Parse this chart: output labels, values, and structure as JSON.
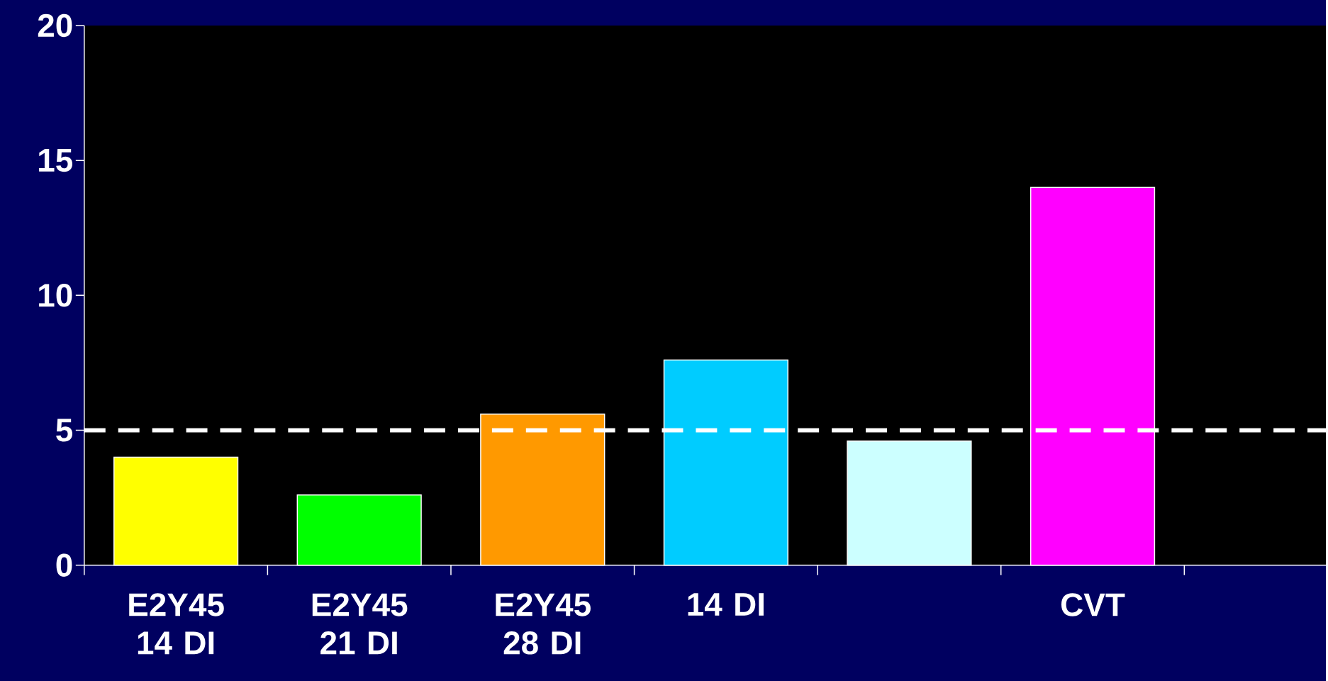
{
  "chart_data": {
    "type": "bar",
    "categories": [
      "E2Y45 14 DI",
      "E2Y45 21 DI",
      "E2Y45 28 DI",
      "14 DI",
      null,
      "CVT"
    ],
    "values": [
      4.0,
      2.6,
      5.6,
      7.6,
      4.6,
      14.0
    ],
    "colors": [
      "#ffff00",
      "#00ff00",
      "#ff9900",
      "#00ccff",
      "#ccffff",
      "#ff00ff"
    ],
    "ylim": [
      0,
      20
    ],
    "yticks": [
      0,
      5,
      10,
      15,
      20
    ],
    "ref_lines": [
      {
        "axis": "y",
        "value": 5,
        "color": "#ffffff",
        "line_style": "dashed"
      }
    ]
  }
}
